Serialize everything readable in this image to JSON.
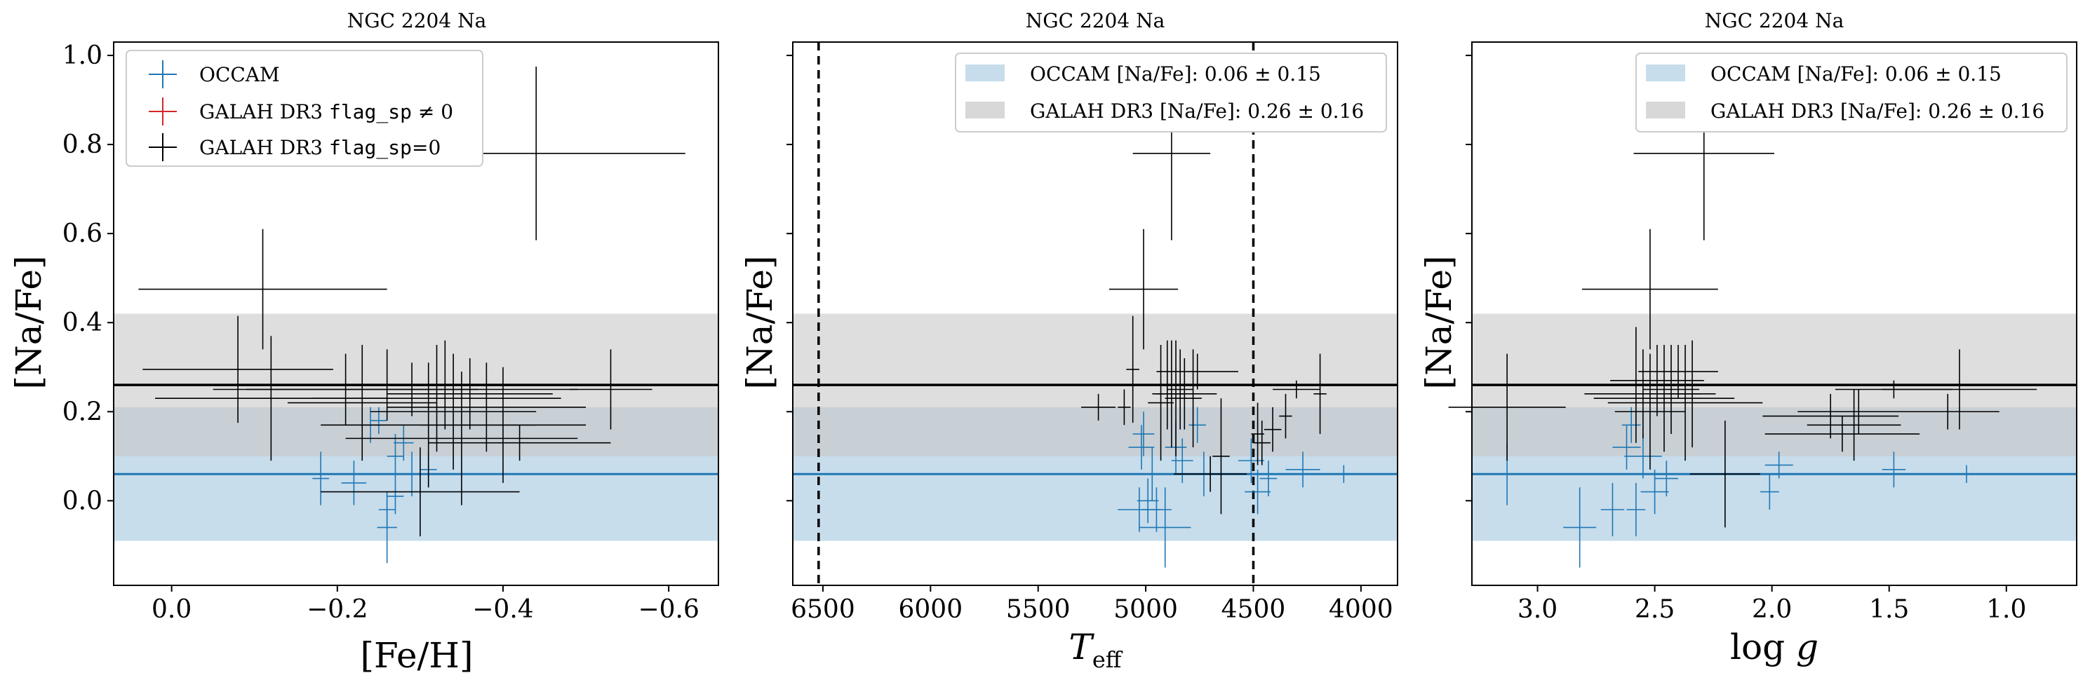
{
  "colors": {
    "occam": "#1f77b4",
    "galah": "#000000",
    "galah_flagged": "#d62728",
    "occam_band": "#1f77b4",
    "galah_band": "#c8c8c8"
  },
  "occam_mean": 0.06,
  "occam_std": 0.15,
  "galah_mean": 0.26,
  "galah_std": 0.16,
  "legend_main": [
    {
      "label": "OCCAM",
      "color": "#1f77b4"
    },
    {
      "label": "GALAH DR3 flag_sp ≠ 0",
      "color": "#d62728"
    },
    {
      "label": "GALAH DR3 flag_sp=0",
      "color": "#000000"
    }
  ],
  "legend_band": [
    {
      "label": "OCCAM [Na/Fe]: 0.06 ± 0.15",
      "color": "#1f77b4"
    },
    {
      "label": "GALAH DR3 [Na/Fe]: 0.26 ± 0.16",
      "color": "#c8c8c8"
    }
  ],
  "chart_data": [
    {
      "type": "scatter",
      "title": "NGC 2204 Na",
      "xlabel": "[Fe/H]",
      "ylabel": "[Na/Fe]",
      "xlim": [
        0.07,
        -0.66
      ],
      "ylim": [
        -0.19,
        1.03
      ],
      "xticks": [
        0.0,
        -0.2,
        -0.4,
        -0.6
      ],
      "xtick_labels": [
        "0.0",
        "−0.2",
        "−0.4",
        "−0.6"
      ],
      "yticks": [
        0.0,
        0.2,
        0.4,
        0.6,
        0.8,
        1.0
      ],
      "ytick_labels": [
        "0.0",
        "0.2",
        "0.4",
        "0.6",
        "0.8",
        "1.0"
      ],
      "legend": "top-left",
      "series": [
        {
          "name": "OCCAM",
          "color": "#1f77b4",
          "points": [
            {
              "x": -0.18,
              "y": 0.05,
              "xerr": 0.01,
              "yerr": 0.06
            },
            {
              "x": -0.22,
              "y": 0.04,
              "xerr": 0.015,
              "yerr": 0.05
            },
            {
              "x": -0.24,
              "y": 0.17,
              "xerr": 0.012,
              "yerr": 0.04
            },
            {
              "x": -0.25,
              "y": 0.18,
              "xerr": 0.01,
              "yerr": 0.03
            },
            {
              "x": -0.26,
              "y": -0.02,
              "xerr": 0.01,
              "yerr": 0.04
            },
            {
              "x": -0.26,
              "y": -0.06,
              "xerr": 0.012,
              "yerr": 0.08
            },
            {
              "x": -0.27,
              "y": 0.1,
              "xerr": 0.01,
              "yerr": 0.05
            },
            {
              "x": -0.27,
              "y": 0.01,
              "xerr": 0.01,
              "yerr": 0.04
            },
            {
              "x": -0.28,
              "y": 0.13,
              "xerr": 0.012,
              "yerr": 0.04
            },
            {
              "x": -0.29,
              "y": 0.06,
              "xerr": 0.015,
              "yerr": 0.05
            },
            {
              "x": -0.31,
              "y": 0.07,
              "xerr": 0.01,
              "yerr": 0.04
            }
          ]
        },
        {
          "name": "GALAH DR3 flag_sp=0",
          "color": "#000000",
          "points": [
            {
              "x": -0.44,
              "y": 0.78,
              "xerr": 0.18,
              "yerr": 0.195
            },
            {
              "x": -0.11,
              "y": 0.475,
              "xerr": 0.15,
              "yerr": 0.135
            },
            {
              "x": -0.08,
              "y": 0.295,
              "xerr": 0.115,
              "yerr": 0.12
            },
            {
              "x": -0.12,
              "y": 0.23,
              "xerr": 0.14,
              "yerr": 0.14
            },
            {
              "x": -0.23,
              "y": 0.22,
              "xerr": 0.09,
              "yerr": 0.13
            },
            {
              "x": -0.21,
              "y": 0.25,
              "xerr": 0.16,
              "yerr": 0.08
            },
            {
              "x": -0.26,
              "y": 0.26,
              "xerr": 0.17,
              "yerr": 0.08
            },
            {
              "x": -0.29,
              "y": 0.25,
              "xerr": 0.2,
              "yerr": 0.06
            },
            {
              "x": -0.31,
              "y": 0.17,
              "xerr": 0.13,
              "yerr": 0.14
            },
            {
              "x": -0.32,
              "y": 0.23,
              "xerr": 0.15,
              "yerr": 0.12
            },
            {
              "x": -0.33,
              "y": 0.26,
              "xerr": 0.16,
              "yerr": 0.1
            },
            {
              "x": -0.34,
              "y": 0.2,
              "xerr": 0.1,
              "yerr": 0.13
            },
            {
              "x": -0.35,
              "y": 0.14,
              "xerr": 0.14,
              "yerr": 0.15
            },
            {
              "x": -0.36,
              "y": 0.24,
              "xerr": 0.1,
              "yerr": 0.08
            },
            {
              "x": -0.38,
              "y": 0.21,
              "xerr": 0.12,
              "yerr": 0.1
            },
            {
              "x": -0.4,
              "y": 0.17,
              "xerr": 0.1,
              "yerr": 0.13
            },
            {
              "x": -0.3,
              "y": 0.02,
              "xerr": 0.12,
              "yerr": 0.1
            },
            {
              "x": -0.53,
              "y": 0.25,
              "xerr": 0.05,
              "yerr": 0.09
            },
            {
              "x": -0.42,
              "y": 0.13,
              "xerr": 0.11,
              "yerr": 0.04
            }
          ]
        }
      ]
    },
    {
      "type": "scatter",
      "title": "NGC 2204 Na",
      "xlabel": "T_eff",
      "ylabel": "[Na/Fe]",
      "xlim": [
        6640,
        3830
      ],
      "ylim": [
        -0.19,
        1.03
      ],
      "xticks": [
        6500,
        6000,
        5500,
        5000,
        4500,
        4000
      ],
      "xtick_labels": [
        "6500",
        "6000",
        "5500",
        "5000",
        "4500",
        "4000"
      ],
      "vlines": [
        6520,
        4500
      ],
      "legend": "top-right",
      "series": [
        {
          "name": "OCCAM",
          "color": "#1f77b4",
          "points": [
            {
              "x": 5020,
              "y": 0.12,
              "xerr": 60,
              "yerr": 0.05
            },
            {
              "x": 5010,
              "y": 0.15,
              "xerr": 50,
              "yerr": 0.05
            },
            {
              "x": 4970,
              "y": 0.06,
              "xerr": 60,
              "yerr": 0.06
            },
            {
              "x": 4990,
              "y": 0.0,
              "xerr": 50,
              "yerr": 0.05
            },
            {
              "x": 5030,
              "y": -0.02,
              "xerr": 100,
              "yerr": 0.05
            },
            {
              "x": 4950,
              "y": -0.02,
              "xerr": 70,
              "yerr": 0.05
            },
            {
              "x": 4910,
              "y": -0.06,
              "xerr": 120,
              "yerr": 0.09
            },
            {
              "x": 4860,
              "y": 0.12,
              "xerr": 50,
              "yerr": 0.06
            },
            {
              "x": 4830,
              "y": 0.09,
              "xerr": 50,
              "yerr": 0.05
            },
            {
              "x": 4760,
              "y": 0.17,
              "xerr": 40,
              "yerr": 0.04
            },
            {
              "x": 4730,
              "y": 0.06,
              "xerr": 50,
              "yerr": 0.05
            },
            {
              "x": 4510,
              "y": 0.09,
              "xerr": 60,
              "yerr": 0.05
            },
            {
              "x": 4480,
              "y": 0.02,
              "xerr": 60,
              "yerr": 0.05
            },
            {
              "x": 4430,
              "y": 0.05,
              "xerr": 40,
              "yerr": 0.04
            },
            {
              "x": 4270,
              "y": 0.07,
              "xerr": 80,
              "yerr": 0.04
            },
            {
              "x": 4080,
              "y": 0.06,
              "xerr": 70,
              "yerr": 0.02
            }
          ]
        },
        {
          "name": "GALAH DR3 flag_sp=0",
          "color": "#000000",
          "points": [
            {
              "x": 4880,
              "y": 0.78,
              "xerr": 180,
              "yerr": 0.195
            },
            {
              "x": 5010,
              "y": 0.475,
              "xerr": 160,
              "yerr": 0.135
            },
            {
              "x": 5060,
              "y": 0.295,
              "xerr": 30,
              "yerr": 0.12
            },
            {
              "x": 5220,
              "y": 0.21,
              "xerr": 80,
              "yerr": 0.03
            },
            {
              "x": 5100,
              "y": 0.21,
              "xerr": 30,
              "yerr": 0.04
            },
            {
              "x": 4930,
              "y": 0.22,
              "xerr": 60,
              "yerr": 0.13
            },
            {
              "x": 4900,
              "y": 0.26,
              "xerr": 90,
              "yerr": 0.1
            },
            {
              "x": 4880,
              "y": 0.24,
              "xerr": 70,
              "yerr": 0.12
            },
            {
              "x": 4860,
              "y": 0.23,
              "xerr": 50,
              "yerr": 0.13
            },
            {
              "x": 4840,
              "y": 0.25,
              "xerr": 60,
              "yerr": 0.09
            },
            {
              "x": 4820,
              "y": 0.24,
              "xerr": 150,
              "yerr": 0.08
            },
            {
              "x": 4780,
              "y": 0.23,
              "xerr": 40,
              "yerr": 0.11
            },
            {
              "x": 4760,
              "y": 0.29,
              "xerr": 190,
              "yerr": 0.04
            },
            {
              "x": 4700,
              "y": 0.06,
              "xerr": 170,
              "yerr": 0.04
            },
            {
              "x": 4650,
              "y": 0.1,
              "xerr": 40,
              "yerr": 0.13
            },
            {
              "x": 4480,
              "y": 0.15,
              "xerr": 30,
              "yerr": 0.07
            },
            {
              "x": 4410,
              "y": 0.16,
              "xerr": 40,
              "yerr": 0.05
            },
            {
              "x": 4350,
              "y": 0.19,
              "xerr": 30,
              "yerr": 0.05
            },
            {
              "x": 4300,
              "y": 0.25,
              "xerr": 110,
              "yerr": 0.02
            },
            {
              "x": 4190,
              "y": 0.24,
              "xerr": 30,
              "yerr": 0.09
            },
            {
              "x": 4460,
              "y": 0.13,
              "xerr": 40,
              "yerr": 0.05
            }
          ]
        }
      ]
    },
    {
      "type": "scatter",
      "title": "NGC 2204 Na",
      "xlabel": "log g",
      "ylabel": "[Na/Fe]",
      "xlim": [
        3.28,
        0.7
      ],
      "ylim": [
        -0.19,
        1.03
      ],
      "xticks": [
        3.0,
        2.5,
        2.0,
        1.5,
        1.0
      ],
      "xtick_labels": [
        "3.0",
        "2.5",
        "2.0",
        "1.5",
        "1.0"
      ],
      "legend": "top-right",
      "series": [
        {
          "name": "OCCAM",
          "color": "#1f77b4",
          "points": [
            {
              "x": 3.13,
              "y": 0.06,
              "xerr": 0.01,
              "yerr": 0.07
            },
            {
              "x": 2.82,
              "y": -0.06,
              "xerr": 0.07,
              "yerr": 0.09
            },
            {
              "x": 2.68,
              "y": -0.02,
              "xerr": 0.05,
              "yerr": 0.06
            },
            {
              "x": 2.62,
              "y": 0.12,
              "xerr": 0.06,
              "yerr": 0.05
            },
            {
              "x": 2.6,
              "y": 0.17,
              "xerr": 0.04,
              "yerr": 0.04
            },
            {
              "x": 2.58,
              "y": -0.02,
              "xerr": 0.04,
              "yerr": 0.06
            },
            {
              "x": 2.55,
              "y": 0.1,
              "xerr": 0.08,
              "yerr": 0.05
            },
            {
              "x": 2.5,
              "y": 0.02,
              "xerr": 0.06,
              "yerr": 0.05
            },
            {
              "x": 2.45,
              "y": 0.05,
              "xerr": 0.05,
              "yerr": 0.04
            },
            {
              "x": 1.97,
              "y": 0.08,
              "xerr": 0.06,
              "yerr": 0.03
            },
            {
              "x": 2.01,
              "y": 0.02,
              "xerr": 0.04,
              "yerr": 0.04
            },
            {
              "x": 1.48,
              "y": 0.07,
              "xerr": 0.05,
              "yerr": 0.04
            },
            {
              "x": 1.17,
              "y": 0.06,
              "xerr": 0.05,
              "yerr": 0.02
            }
          ]
        },
        {
          "name": "GALAH DR3 flag_sp=0",
          "color": "#000000",
          "points": [
            {
              "x": 2.29,
              "y": 0.78,
              "xerr": 0.3,
              "yerr": 0.195
            },
            {
              "x": 2.52,
              "y": 0.475,
              "xerr": 0.29,
              "yerr": 0.135
            },
            {
              "x": 3.13,
              "y": 0.21,
              "xerr": 0.25,
              "yerr": 0.12
            },
            {
              "x": 2.58,
              "y": 0.26,
              "xerr": 0.12,
              "yerr": 0.13
            },
            {
              "x": 2.55,
              "y": 0.24,
              "xerr": 0.25,
              "yerr": 0.1
            },
            {
              "x": 2.52,
              "y": 0.2,
              "xerr": 0.15,
              "yerr": 0.13
            },
            {
              "x": 2.49,
              "y": 0.27,
              "xerr": 0.2,
              "yerr": 0.08
            },
            {
              "x": 2.46,
              "y": 0.23,
              "xerr": 0.3,
              "yerr": 0.12
            },
            {
              "x": 2.43,
              "y": 0.25,
              "xerr": 0.12,
              "yerr": 0.1
            },
            {
              "x": 2.4,
              "y": 0.29,
              "xerr": 0.17,
              "yerr": 0.06
            },
            {
              "x": 2.37,
              "y": 0.22,
              "xerr": 0.33,
              "yerr": 0.13
            },
            {
              "x": 2.34,
              "y": 0.24,
              "xerr": 0.1,
              "yerr": 0.12
            },
            {
              "x": 2.2,
              "y": 0.06,
              "xerr": 0.15,
              "yerr": 0.12
            },
            {
              "x": 1.75,
              "y": 0.19,
              "xerr": 0.29,
              "yerr": 0.05
            },
            {
              "x": 1.7,
              "y": 0.15,
              "xerr": 0.33,
              "yerr": 0.04
            },
            {
              "x": 1.65,
              "y": 0.17,
              "xerr": 0.2,
              "yerr": 0.08
            },
            {
              "x": 1.48,
              "y": 0.25,
              "xerr": 0.25,
              "yerr": 0.02
            },
            {
              "x": 1.2,
              "y": 0.25,
              "xerr": 0.33,
              "yerr": 0.09
            },
            {
              "x": 1.25,
              "y": 0.2,
              "xerr": 0.22,
              "yerr": 0.04
            },
            {
              "x": 1.63,
              "y": 0.2,
              "xerr": 0.26,
              "yerr": 0.05
            }
          ]
        }
      ]
    }
  ]
}
